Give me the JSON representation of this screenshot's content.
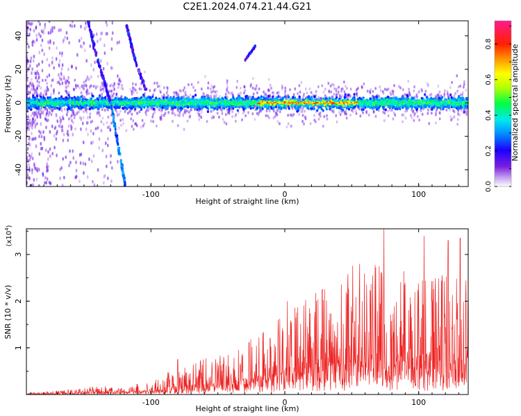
{
  "title": "C2E1.2024.074.21.44.G21",
  "chart_data": [
    {
      "type": "heatmap",
      "xlabel": "Height of straight line (km)",
      "ylabel": "Frequency (Hz)",
      "xlim": [
        -193,
        137
      ],
      "ylim": [
        -50,
        49
      ],
      "xticks": [
        "-100",
        "0",
        "100"
      ],
      "yticks": [
        "-40",
        "-20",
        "0",
        "20",
        "40"
      ],
      "colorbar": {
        "label": "Normalized spectral amplitude",
        "range": [
          0,
          0.93
        ],
        "ticks": [
          "0.0",
          "0.2",
          "0.4",
          "0.6",
          "0.8"
        ]
      },
      "features": {
        "main_band_frequency": 0,
        "main_band_halfwidth": 6,
        "high_amplitude_x_range": [
          -20,
          55
        ],
        "steep_trace_points": [
          [
            -140,
            26
          ],
          [
            -130,
            0
          ],
          [
            -122,
            -37
          ]
        ],
        "steep_trace_2_points": [
          [
            -118,
            46
          ],
          [
            -112,
            26
          ]
        ],
        "short_trace_points": [
          [
            -30,
            25
          ],
          [
            -22,
            34
          ]
        ]
      },
      "grid": false,
      "legend": "colorbar-right"
    },
    {
      "type": "line",
      "xlabel": "Height of straight line (km)",
      "ylabel": "SNR (10 * v/v)",
      "yscale_note": "(x10",
      "yscale_exp": "4",
      "xlim": [
        -193,
        137
      ],
      "ylim": [
        0,
        3.55
      ],
      "xticks": [
        "-100",
        "0",
        "100"
      ],
      "yticks": [
        "1",
        "2",
        "3"
      ],
      "color": "#ee2222",
      "envelope": {
        "x": [
          -193,
          -170,
          -150,
          -140,
          -120,
          -100,
          -80,
          -60,
          -40,
          -20,
          0,
          20,
          40,
          60,
          80,
          100,
          120,
          137
        ],
        "y": [
          0.02,
          0.05,
          0.08,
          0.12,
          0.1,
          0.18,
          0.35,
          0.45,
          0.55,
          0.75,
          1.05,
          1.35,
          1.55,
          1.7,
          1.65,
          1.6,
          1.5,
          1.45
        ]
      },
      "peaks": [
        {
          "x": 74,
          "y": 3.55
        },
        {
          "x": 104,
          "y": 3.4
        },
        {
          "x": 131,
          "y": 3.35
        },
        {
          "x": 122,
          "y": 3.3
        },
        {
          "x": 56,
          "y": 2.8
        },
        {
          "x": 28,
          "y": 2.25
        },
        {
          "x": 2,
          "y": 2.0
        },
        {
          "x": -80,
          "y": 0.75
        }
      ],
      "grid": false
    }
  ]
}
